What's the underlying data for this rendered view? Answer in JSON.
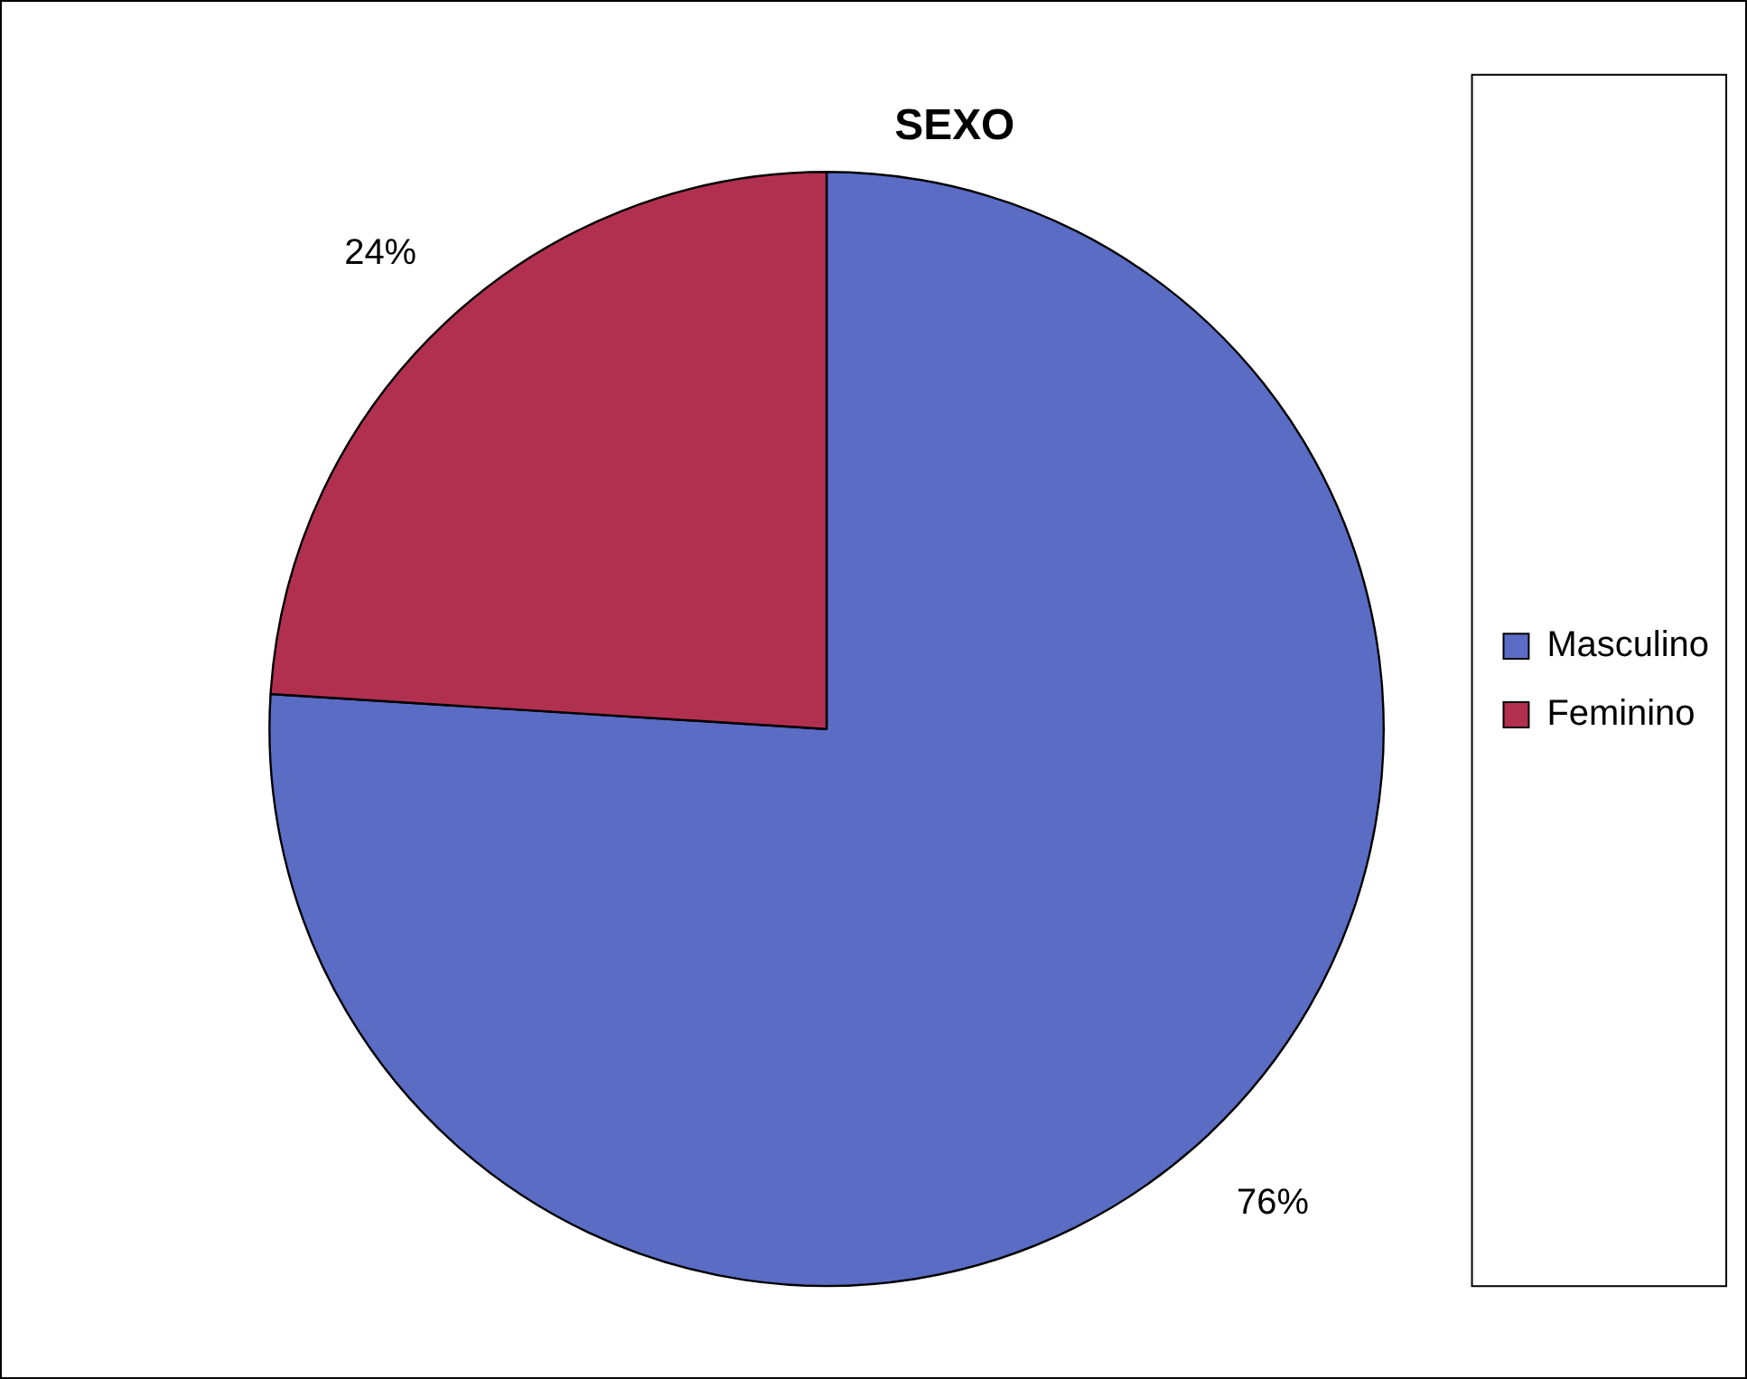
{
  "chart_data": {
    "type": "pie",
    "title": "SEXO",
    "categories": [
      "Masculino",
      "Feminino"
    ],
    "values": [
      76,
      24
    ],
    "colors": [
      "#5a6cc4",
      "#b2304f"
    ],
    "value_labels": [
      "76%",
      "24%"
    ],
    "legend": "right"
  }
}
